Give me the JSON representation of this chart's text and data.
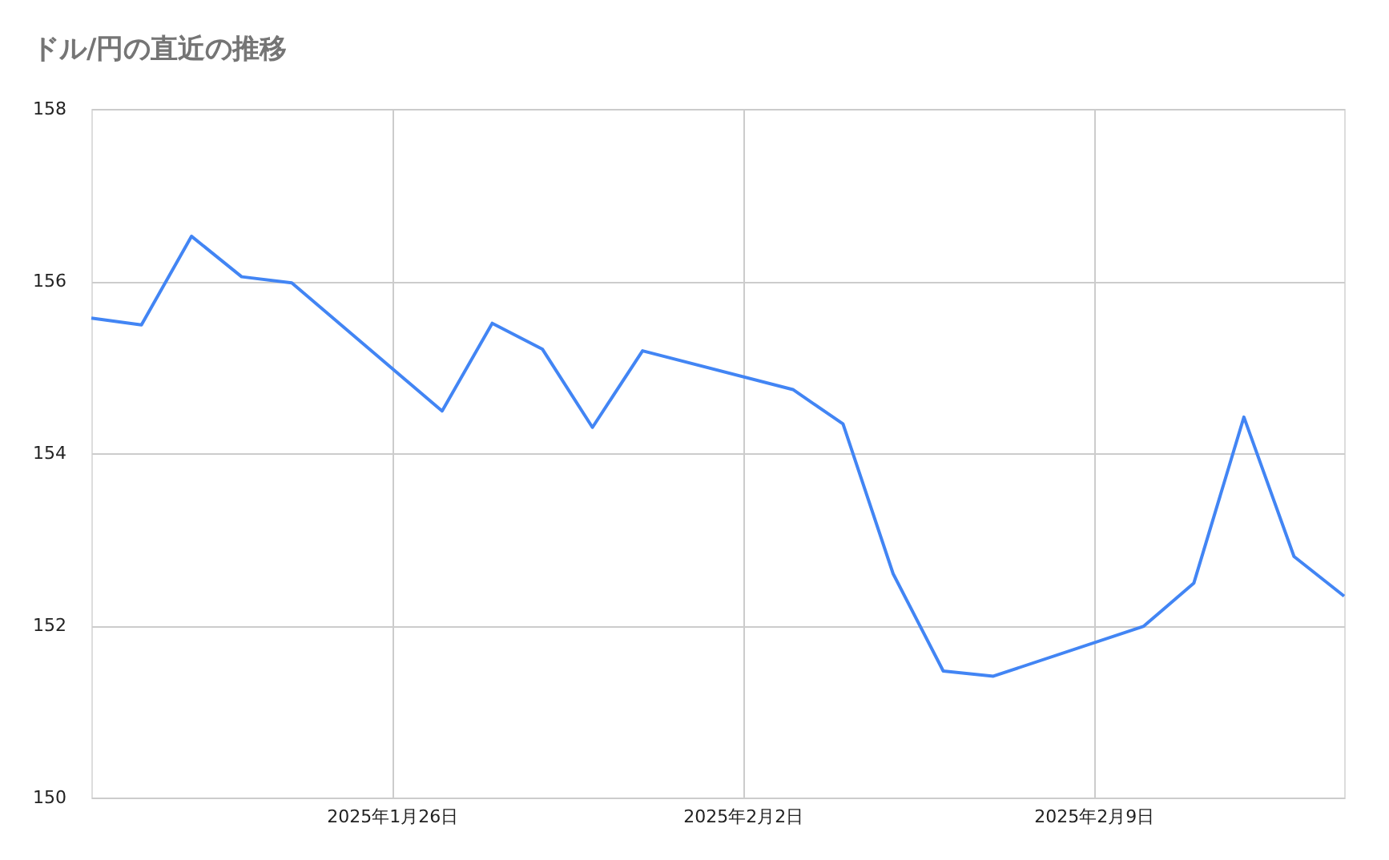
{
  "chart_data": {
    "type": "line",
    "title": "ドル/円の直近の推移",
    "x": [
      "2025-01-20",
      "2025-01-21",
      "2025-01-22",
      "2025-01-23",
      "2025-01-24",
      "2025-01-27",
      "2025-01-28",
      "2025-01-29",
      "2025-01-30",
      "2025-01-31",
      "2025-02-03",
      "2025-02-04",
      "2025-02-05",
      "2025-02-06",
      "2025-02-07",
      "2025-02-10",
      "2025-02-11",
      "2025-02-12",
      "2025-02-13",
      "2025-02-14"
    ],
    "series": [
      {
        "color": "#4285f4",
        "values": [
          155.57,
          155.49,
          156.52,
          156.05,
          155.98,
          154.49,
          155.51,
          155.21,
          154.3,
          155.19,
          154.74,
          154.34,
          152.6,
          151.47,
          151.41,
          151.99,
          152.49,
          154.42,
          152.8,
          152.34
        ]
      }
    ],
    "xlim": [
      "2025-01-20",
      "2025-02-14"
    ],
    "xticks": [
      {
        "value": "2025-01-26",
        "label": "2025年1月26日"
      },
      {
        "value": "2025-02-02",
        "label": "2025年2月2日"
      },
      {
        "value": "2025-02-09",
        "label": "2025年2月9日"
      }
    ],
    "ylim": [
      150,
      158
    ],
    "yticks": [
      150,
      152,
      154,
      156,
      158
    ],
    "grid": true,
    "legend": false,
    "marker": "none",
    "line_style": "solid"
  }
}
